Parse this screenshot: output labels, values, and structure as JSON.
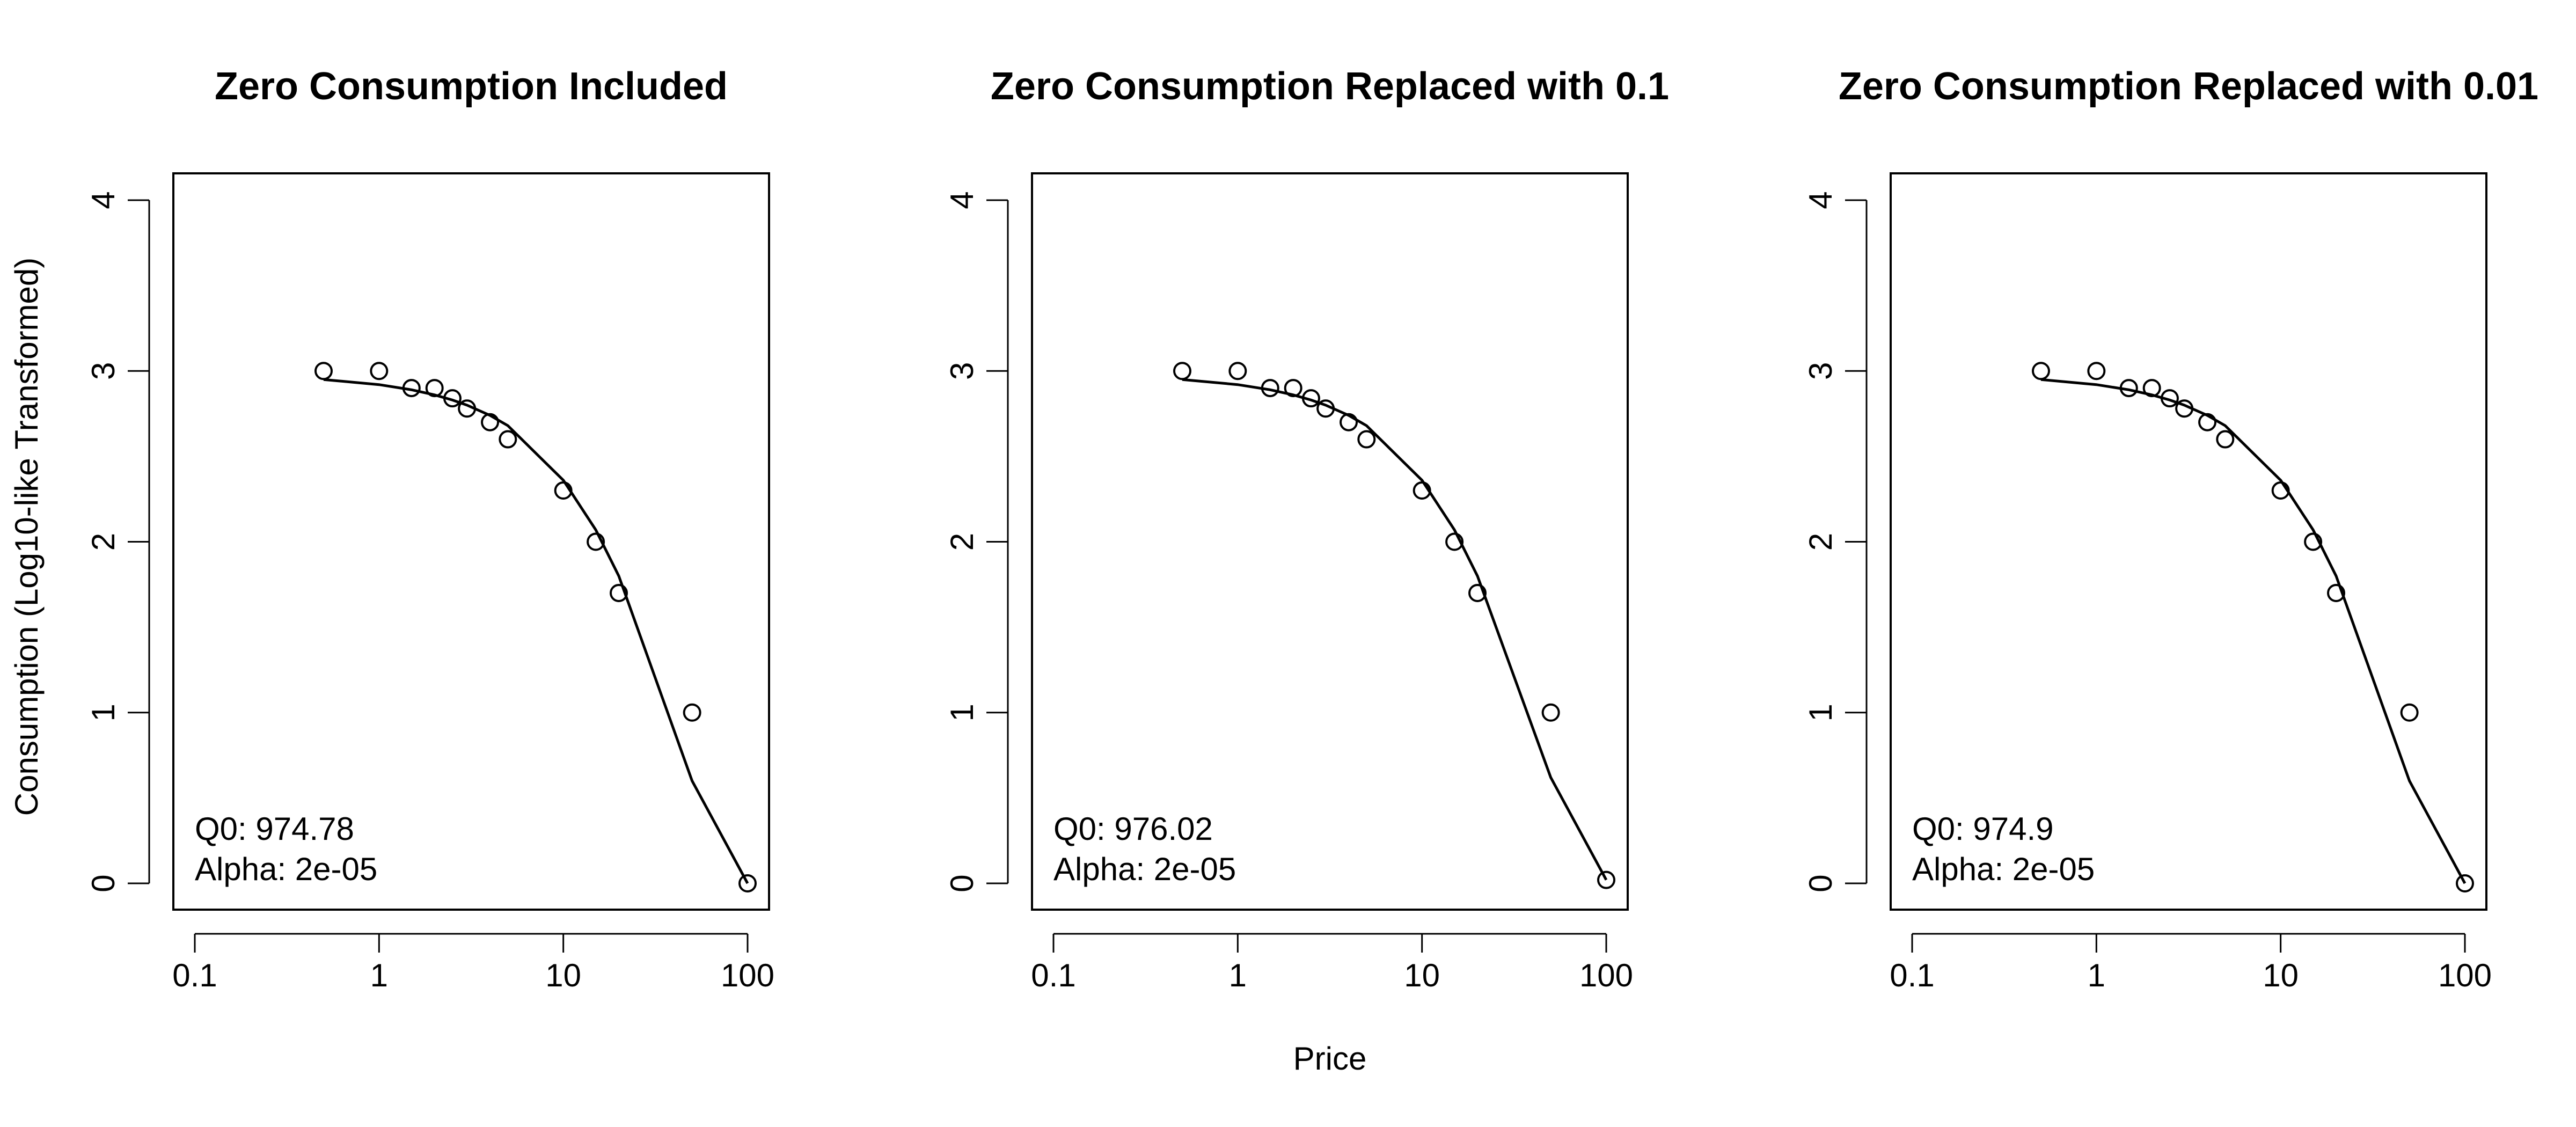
{
  "figure": {
    "ylabel": "Consumption (Log10-like Transformed)",
    "xlabel": "Price"
  },
  "chart_data": [
    {
      "type": "scatter",
      "title": "Zero Consumption Included",
      "x_scale": "log",
      "xlim": [
        0.1,
        100
      ],
      "ylim": [
        0,
        4
      ],
      "x_ticks": [
        "0.1",
        "1",
        "10",
        "100"
      ],
      "y_ticks": [
        "0",
        "1",
        "2",
        "3",
        "4"
      ],
      "annotations": [
        "Q0: 974.78",
        "Alpha: 2e-05"
      ],
      "series": [
        {
          "kind": "points",
          "x": [
            0.5,
            1,
            1.5,
            2,
            2.5,
            3,
            4,
            5,
            10,
            15,
            20,
            50,
            100
          ],
          "y": [
            3.0,
            3.0,
            2.9,
            2.9,
            2.84,
            2.78,
            2.7,
            2.6,
            2.3,
            2.0,
            1.7,
            1.0,
            0.0
          ]
        },
        {
          "kind": "fit-line",
          "x": [
            0.5,
            1,
            1.5,
            2,
            2.5,
            3,
            4,
            5,
            10,
            15,
            20,
            50,
            100
          ],
          "y": [
            2.95,
            2.92,
            2.89,
            2.86,
            2.83,
            2.8,
            2.74,
            2.68,
            2.36,
            2.07,
            1.8,
            0.6,
            0.0
          ]
        }
      ]
    },
    {
      "type": "scatter",
      "title": "Zero Consumption Replaced with 0.1",
      "x_scale": "log",
      "xlim": [
        0.1,
        100
      ],
      "ylim": [
        0,
        4
      ],
      "x_ticks": [
        "0.1",
        "1",
        "10",
        "100"
      ],
      "y_ticks": [
        "0",
        "1",
        "2",
        "3",
        "4"
      ],
      "annotations": [
        "Q0: 976.02",
        "Alpha: 2e-05"
      ],
      "series": [
        {
          "kind": "points",
          "x": [
            0.5,
            1,
            1.5,
            2,
            2.5,
            3,
            4,
            5,
            10,
            15,
            20,
            50,
            100
          ],
          "y": [
            3.0,
            3.0,
            2.9,
            2.9,
            2.84,
            2.78,
            2.7,
            2.6,
            2.3,
            2.0,
            1.7,
            1.0,
            0.02
          ]
        },
        {
          "kind": "fit-line",
          "x": [
            0.5,
            1,
            1.5,
            2,
            2.5,
            3,
            4,
            5,
            10,
            15,
            20,
            50,
            100
          ],
          "y": [
            2.95,
            2.92,
            2.89,
            2.86,
            2.83,
            2.8,
            2.74,
            2.68,
            2.36,
            2.07,
            1.8,
            0.62,
            0.02
          ]
        }
      ]
    },
    {
      "type": "scatter",
      "title": "Zero Consumption Replaced with 0.01",
      "x_scale": "log",
      "xlim": [
        0.1,
        100
      ],
      "ylim": [
        0,
        4
      ],
      "x_ticks": [
        "0.1",
        "1",
        "10",
        "100"
      ],
      "y_ticks": [
        "0",
        "1",
        "2",
        "3",
        "4"
      ],
      "annotations": [
        "Q0: 974.9",
        "Alpha: 2e-05"
      ],
      "series": [
        {
          "kind": "points",
          "x": [
            0.5,
            1,
            1.5,
            2,
            2.5,
            3,
            4,
            5,
            10,
            15,
            20,
            50,
            100
          ],
          "y": [
            3.0,
            3.0,
            2.9,
            2.9,
            2.84,
            2.78,
            2.7,
            2.6,
            2.3,
            2.0,
            1.7,
            1.0,
            0.0
          ]
        },
        {
          "kind": "fit-line",
          "x": [
            0.5,
            1,
            1.5,
            2,
            2.5,
            3,
            4,
            5,
            10,
            15,
            20,
            50,
            100
          ],
          "y": [
            2.95,
            2.92,
            2.89,
            2.86,
            2.83,
            2.8,
            2.74,
            2.68,
            2.36,
            2.07,
            1.8,
            0.6,
            0.0
          ]
        }
      ]
    }
  ]
}
